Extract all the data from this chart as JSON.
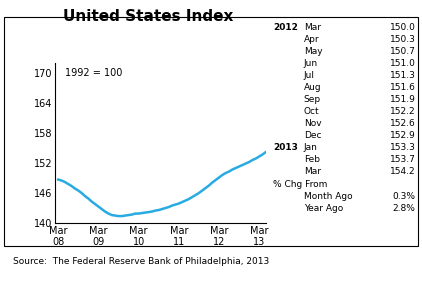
{
  "title": "United States Index",
  "subtitle": "1992 = 100",
  "line_color": "#29ABE2",
  "x_labels": [
    "Mar\n08",
    "Mar\n09",
    "Mar\n10",
    "Mar\n11",
    "Mar\n12",
    "Mar\n13"
  ],
  "x_ticks": [
    0,
    12,
    24,
    36,
    48,
    60
  ],
  "ylim": [
    140,
    172
  ],
  "yticks": [
    140,
    146,
    152,
    158,
    164,
    170
  ],
  "source_text": "Source:  The Federal Reserve Bank of Philadelphia, 2013",
  "table_lines": [
    [
      "2012",
      "Mar",
      "150.0"
    ],
    [
      "",
      "Apr",
      "150.3"
    ],
    [
      "",
      "May",
      "150.7"
    ],
    [
      "",
      "Jun",
      "151.0"
    ],
    [
      "",
      "Jul",
      "151.3"
    ],
    [
      "",
      "Aug",
      "151.6"
    ],
    [
      "",
      "Sep",
      "151.9"
    ],
    [
      "",
      "Oct",
      "152.2"
    ],
    [
      "",
      "Nov",
      "152.6"
    ],
    [
      "",
      "Dec",
      "152.9"
    ],
    [
      "2013",
      "Jan",
      "153.3"
    ],
    [
      "",
      "Feb",
      "153.7"
    ],
    [
      "",
      "Mar",
      "154.2"
    ]
  ],
  "pct_chg_label": "% Chg From",
  "month_ago_label": "Month Ago",
  "month_ago_val": "0.3%",
  "year_ago_label": "Year Ago",
  "year_ago_val": "2.8%",
  "data": [
    148.7,
    148.5,
    148.2,
    147.8,
    147.4,
    146.9,
    146.5,
    146.0,
    145.4,
    144.9,
    144.3,
    143.8,
    143.3,
    142.8,
    142.3,
    141.9,
    141.6,
    141.5,
    141.4,
    141.4,
    141.5,
    141.6,
    141.7,
    141.9,
    141.9,
    142.0,
    142.1,
    142.2,
    142.3,
    142.5,
    142.6,
    142.8,
    143.0,
    143.2,
    143.5,
    143.7,
    143.9,
    144.2,
    144.5,
    144.8,
    145.2,
    145.6,
    146.0,
    146.5,
    147.0,
    147.5,
    148.1,
    148.6,
    149.1,
    149.6,
    150.0,
    150.3,
    150.7,
    151.0,
    151.3,
    151.6,
    151.9,
    152.2,
    152.6,
    152.9,
    153.3,
    153.7,
    154.2
  ]
}
